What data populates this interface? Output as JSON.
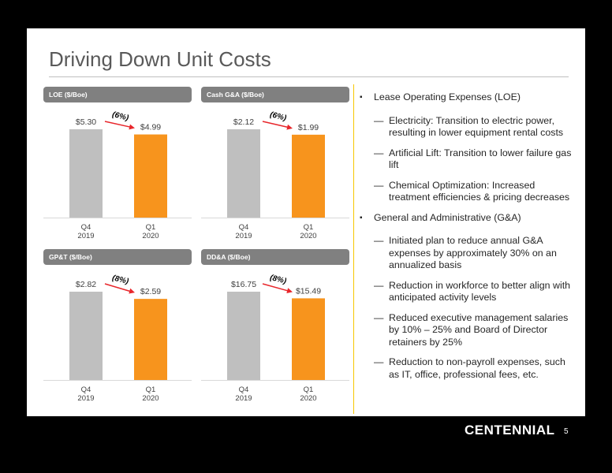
{
  "title": "Driving Down Unit Costs",
  "chart_data": [
    {
      "type": "bar",
      "title": "LOE ($/Boe)",
      "categories": [
        "Q4\n2019",
        "Q1\n2020"
      ],
      "values": [
        5.3,
        4.99
      ],
      "value_labels": [
        "$5.30",
        "$4.99"
      ],
      "change_label": "(6%)",
      "colors": [
        "#bfbfbf",
        "#f7941d"
      ],
      "arrow_color": "#e8262b"
    },
    {
      "type": "bar",
      "title": "Cash G&A ($/Boe)",
      "categories": [
        "Q4\n2019",
        "Q1\n2020"
      ],
      "values": [
        2.12,
        1.99
      ],
      "value_labels": [
        "$2.12",
        "$1.99"
      ],
      "change_label": "(6%)",
      "colors": [
        "#bfbfbf",
        "#f7941d"
      ],
      "arrow_color": "#e8262b"
    },
    {
      "type": "bar",
      "title": "GP&T ($/Boe)",
      "categories": [
        "Q4\n2019",
        "Q1\n2020"
      ],
      "values": [
        2.82,
        2.59
      ],
      "value_labels": [
        "$2.82",
        "$2.59"
      ],
      "change_label": "(8%)",
      "colors": [
        "#bfbfbf",
        "#f7941d"
      ],
      "arrow_color": "#e8262b"
    },
    {
      "type": "bar",
      "title": "DD&A ($/Boe)",
      "categories": [
        "Q4\n2019",
        "Q1\n2020"
      ],
      "values": [
        16.75,
        15.49
      ],
      "value_labels": [
        "$16.75",
        "$15.49"
      ],
      "change_label": "(8%)",
      "colors": [
        "#bfbfbf",
        "#f7941d"
      ],
      "arrow_color": "#e8262b"
    }
  ],
  "bullets": [
    {
      "text": "Lease Operating Expenses (LOE)",
      "subs": [
        "Electricity: Transition to electric power, resulting in lower equipment rental costs",
        "Artificial Lift: Transition to lower failure gas lift",
        "Chemical Optimization: Increased treatment efficiencies & pricing decreases"
      ]
    },
    {
      "text": "General and Administrative (G&A)",
      "subs": [
        "Initiated plan to reduce annual G&A expenses by approximately 30% on an annualized basis",
        "Reduction in workforce to better align with anticipated activity levels",
        "Reduced executive management salaries by 10% – 25% and Board of Director retainers by 25%",
        "Reduction to non-payroll expenses, such as IT, office, professional fees, etc."
      ]
    }
  ],
  "bullet_marks": {
    "level1": "▪",
    "level2": "—"
  },
  "footer": {
    "logo": "CENTENNIAL",
    "page": "5"
  }
}
